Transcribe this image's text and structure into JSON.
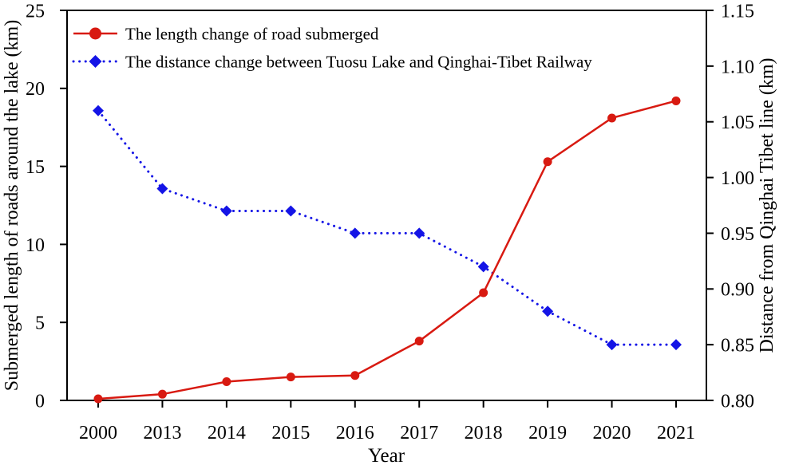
{
  "figure": {
    "background": "#ffffff",
    "axis_color": "#000000"
  },
  "chart_data": {
    "type": "line",
    "title": "",
    "xlabel": "Year",
    "categories": [
      "2000",
      "2013",
      "2014",
      "2015",
      "2016",
      "2017",
      "2018",
      "2019",
      "2020",
      "2021"
    ],
    "series": [
      {
        "name": "The length change of road submerged",
        "axis": "left",
        "color": "#d81a11",
        "marker": "circle",
        "line_style": "solid",
        "values": [
          0.1,
          0.4,
          1.2,
          1.5,
          1.6,
          3.8,
          6.9,
          15.3,
          18.1,
          19.2
        ]
      },
      {
        "name": "The distance change between Tuosu Lake and Qinghai-Tibet Railway",
        "axis": "right",
        "color": "#1414e6",
        "marker": "diamond",
        "line_style": "dotted",
        "values": [
          1.06,
          0.99,
          0.97,
          0.97,
          0.95,
          0.95,
          0.92,
          0.88,
          0.85,
          0.85
        ]
      }
    ],
    "left_axis": {
      "label": "Submerged length of roads around the lake (km)",
      "min": 0,
      "max": 25,
      "ticks": [
        "0",
        "5",
        "10",
        "15",
        "20",
        "25"
      ]
    },
    "right_axis": {
      "label": "Distance from Qinghai Tibet line (km)",
      "min": 0.8,
      "max": 1.15,
      "ticks": [
        "0.80",
        "0.85",
        "0.90",
        "0.95",
        "1.00",
        "1.05",
        "1.10",
        "1.15"
      ]
    },
    "legend_position": "top-left",
    "grid": false
  }
}
